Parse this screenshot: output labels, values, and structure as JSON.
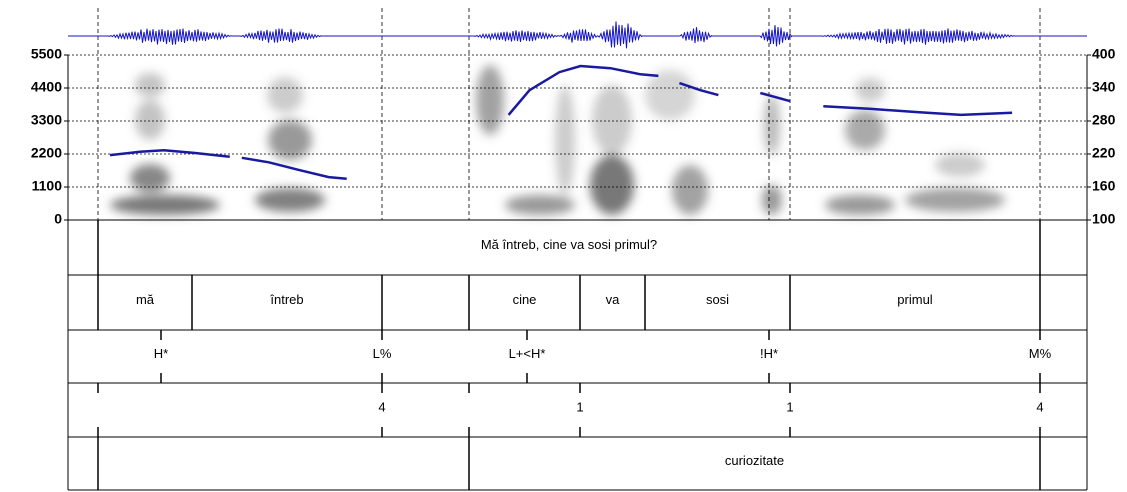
{
  "chart_data": {
    "type": "line",
    "xlim": [
      0,
      3.4
    ],
    "x": [
      0.14,
      0.24,
      0.32,
      0.42,
      0.54,
      null,
      0.58,
      0.67,
      0.77,
      0.87,
      0.93,
      null,
      1.47,
      1.54,
      1.64,
      1.71,
      1.81,
      1.91,
      1.97,
      null,
      2.04,
      2.11,
      2.17,
      null,
      2.31,
      2.41,
      null,
      2.52,
      2.68,
      2.84,
      2.98,
      3.15
    ],
    "series": [
      {
        "color": "#1a1aa0",
        "axis": "y2",
        "values": [
          218,
          224,
          227,
          222,
          215,
          null,
          213,
          205,
          191,
          178,
          175,
          null,
          291,
          336,
          369,
          380,
          376,
          365,
          362,
          null,
          349,
          336,
          327,
          null,
          331,
          316,
          null,
          307,
          302,
          296,
          291,
          295
        ]
      }
    ],
    "ylim": [
      0,
      5500
    ],
    "yticks": [
      0,
      1100,
      2200,
      3300,
      4400,
      5500
    ],
    "y2lim": [
      100,
      400
    ],
    "y2ticks": [
      100,
      160,
      220,
      280,
      340,
      400
    ],
    "grid": true
  },
  "tiers": [
    {
      "intervals": [
        "Mă întreb, cine va sosi primul?"
      ]
    },
    {
      "intervals": [
        "mă",
        "întreb",
        "cine",
        "va",
        "sosi",
        "primul"
      ]
    },
    {
      "points": [
        "H*",
        "L%",
        "L+<H*",
        "!H*",
        "M%"
      ]
    },
    {
      "points": [
        "4",
        "1",
        "1",
        "4"
      ]
    },
    {
      "intervals": [
        "curiozitate"
      ]
    }
  ]
}
